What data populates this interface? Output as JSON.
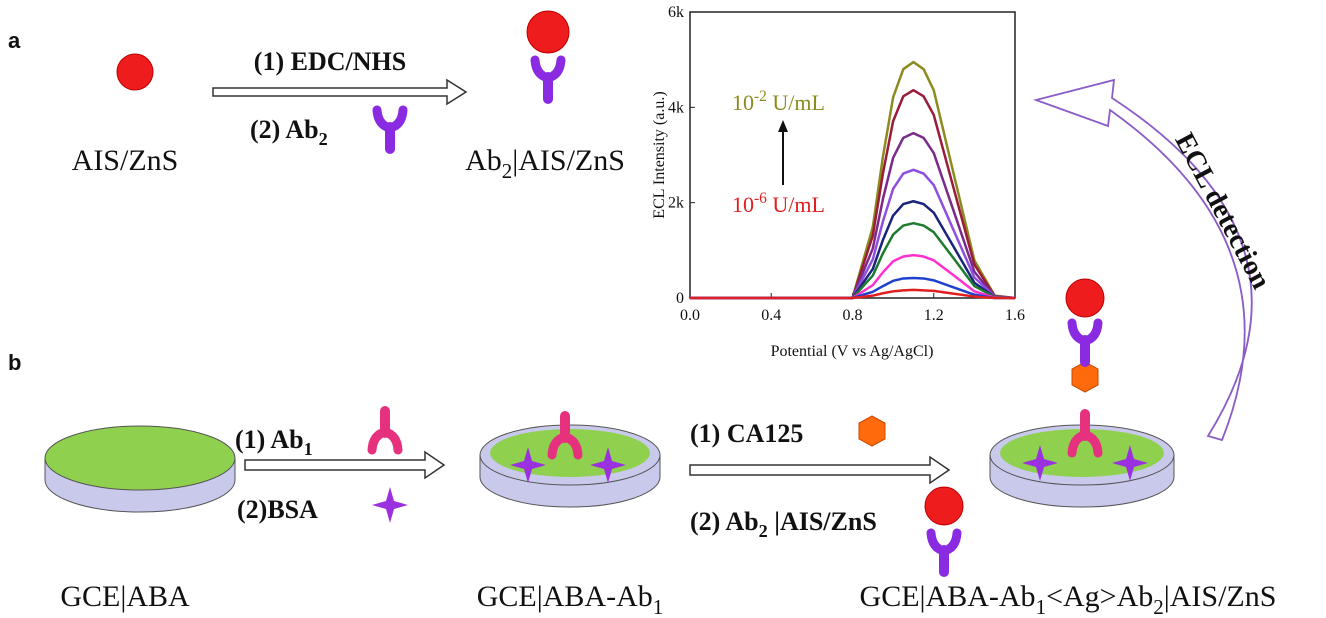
{
  "diagram": {
    "panel_a": "a",
    "panel_b": "b",
    "step_a1": "(1) EDC/NHS",
    "step_a2": [
      "(2) Ab",
      "2"
    ],
    "label_ais": "AIS/ZnS",
    "label_ab2_ais": [
      "Ab",
      "2",
      "|AIS/ZnS"
    ],
    "detection": "ECL detection",
    "step_b1": [
      "(1) Ab",
      "1"
    ],
    "step_b2": "(2)BSA",
    "step_b3": "(1) CA125",
    "step_b4": [
      "(2) Ab",
      "2",
      " |AIS/ZnS"
    ],
    "label_gce": "GCE|ABA",
    "label_gce_ab1": [
      "GCE|ABA-Ab",
      "1"
    ],
    "label_final": [
      "GCE|ABA-Ab",
      "1",
      "<Ag>Ab",
      "2",
      "|AIS/ZnS"
    ]
  },
  "chart_data": {
    "type": "line",
    "x_label": "Potential (V vs Ag/AgCl)",
    "y_label": "ECL Intensity (a.u.)",
    "annotations": [
      [
        "10",
        "-2",
        " U/mL"
      ],
      [
        "10",
        "-6",
        " U/mL"
      ]
    ],
    "xlim": [
      0,
      1.6
    ],
    "ylim": [
      0,
      6000
    ],
    "xticks": [
      {
        "value": 0,
        "label": "0.0"
      },
      0.4,
      0.8,
      1.2,
      1.6
    ],
    "yticks": [
      0,
      {
        "value": 2000,
        "label": "2k"
      },
      {
        "value": 4000,
        "label": "4k"
      },
      {
        "value": 6000,
        "label": "6k"
      }
    ],
    "x": [
      0,
      0.4,
      0.8,
      0.9,
      0.95,
      1.0,
      1.05,
      1.1,
      1.15,
      1.2,
      1.3,
      1.4,
      1.5,
      1.6
    ],
    "series": [
      {
        "color": "#8b8b1f",
        "values": [
          0,
          0,
          0,
          1490,
          2970,
          4210,
          4800,
          4950,
          4800,
          4360,
          2570,
          790,
          50,
          0
        ]
      },
      {
        "color": "#9b1b3b",
        "values": [
          0,
          0,
          0,
          1310,
          2620,
          3710,
          4230,
          4360,
          4230,
          3840,
          2270,
          700,
          40,
          0
        ]
      },
      {
        "color": "#7b2a8a",
        "values": [
          0,
          0,
          0,
          1040,
          2080,
          2940,
          3360,
          3460,
          3360,
          3040,
          1800,
          550,
          30,
          0
        ]
      },
      {
        "color": "#8e4fe0",
        "values": [
          0,
          0,
          0,
          810,
          1610,
          2290,
          2610,
          2690,
          2610,
          2370,
          1400,
          430,
          30,
          0
        ]
      },
      {
        "color": "#1a237e",
        "values": [
          0,
          0,
          0,
          610,
          1220,
          1730,
          1970,
          2030,
          1970,
          1790,
          1060,
          320,
          20,
          0
        ]
      },
      {
        "color": "#1e7a2e",
        "values": [
          0,
          0,
          0,
          470,
          940,
          1330,
          1520,
          1570,
          1520,
          1380,
          820,
          250,
          20,
          0
        ]
      },
      {
        "color": "#ff2fd0",
        "values": [
          0,
          0,
          0,
          270,
          540,
          770,
          870,
          900,
          870,
          790,
          470,
          140,
          10,
          0
        ]
      },
      {
        "color": "#2040d0",
        "values": [
          0,
          0,
          0,
          130,
          250,
          360,
          410,
          420,
          410,
          370,
          220,
          70,
          0,
          0
        ]
      },
      {
        "color": "#e02020",
        "values": [
          0,
          0,
          0,
          50,
          100,
          140,
          160,
          170,
          160,
          150,
          90,
          30,
          0,
          0
        ]
      }
    ]
  }
}
